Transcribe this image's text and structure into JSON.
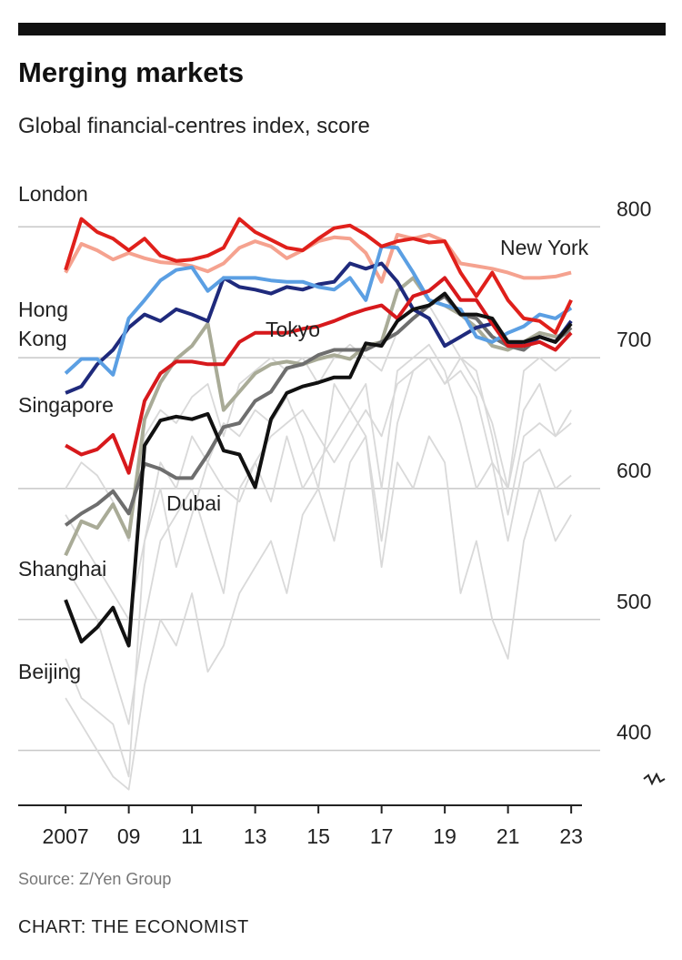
{
  "chart_data": {
    "type": "line",
    "title": "Merging markets",
    "subtitle": "Global financial-centres index, score",
    "source": "Source: Z/Yen Group",
    "credit": "CHART: THE ECONOMIST",
    "x": [
      2007,
      2007.5,
      2008,
      2008.5,
      2009,
      2009.5,
      2010,
      2010.5,
      2011,
      2011.5,
      2012,
      2012.5,
      2013,
      2013.5,
      2014,
      2014.5,
      2015,
      2015.5,
      2016,
      2016.5,
      2017,
      2017.5,
      2018,
      2018.5,
      2019,
      2019.5,
      2020,
      2020.5,
      2021,
      2021.5,
      2022,
      2022.5,
      2023
    ],
    "xlim": [
      2005.5,
      2023.6
    ],
    "xticks": [
      2007,
      {
        "value": 2009,
        "label": "09"
      },
      {
        "value": 2011,
        "label": "11"
      },
      {
        "value": 2013,
        "label": "13"
      },
      {
        "value": 2015,
        "label": "15"
      },
      {
        "value": 2017,
        "label": "17"
      },
      {
        "value": 2019,
        "label": "19"
      },
      {
        "value": 2021,
        "label": "21"
      },
      {
        "value": 2023,
        "label": "23"
      }
    ],
    "ylim": [
      358,
      812
    ],
    "yticks": [
      400,
      500,
      600,
      700,
      800
    ],
    "grid": true,
    "series": [
      {
        "color": "#d9d9d9",
        "values": [
          470,
          440,
          430,
          420,
          380,
          560,
          620,
          600,
          640,
          620,
          650,
          640,
          660,
          650,
          670,
          640,
          600,
          680,
          660,
          640,
          560,
          650,
          690,
          700,
          680,
          700,
          690,
          640,
          580,
          640,
          650,
          640,
          650
        ]
      },
      {
        "color": "#d9d9d9",
        "values": [
          540,
          520,
          500,
          460,
          420,
          500,
          560,
          580,
          600,
          560,
          520,
          600,
          620,
          590,
          640,
          600,
          620,
          640,
          660,
          680,
          600,
          690,
          700,
          710,
          690,
          650,
          600,
          620,
          560,
          620,
          630,
          600,
          610
        ]
      },
      {
        "color": "#d9d9d9",
        "values": [
          600,
          620,
          610,
          590,
          560,
          640,
          660,
          650,
          670,
          680,
          640,
          680,
          690,
          700,
          690,
          700,
          680,
          700,
          710,
          700,
          690,
          720,
          730,
          740,
          720,
          700,
          680,
          650,
          600,
          690,
          700,
          690,
          700
        ]
      },
      {
        "color": "#d9d9d9",
        "values": [
          440,
          420,
          400,
          380,
          370,
          450,
          500,
          480,
          520,
          460,
          480,
          520,
          540,
          560,
          520,
          580,
          600,
          560,
          620,
          640,
          540,
          620,
          600,
          640,
          620,
          520,
          560,
          500,
          470,
          560,
          600,
          560,
          580
        ]
      },
      {
        "color": "#d9d9d9",
        "values": [
          580,
          560,
          540,
          520,
          500,
          560,
          600,
          540,
          580,
          620,
          600,
          590,
          620,
          640,
          650,
          660,
          640,
          620,
          640,
          660,
          640,
          680,
          690,
          700,
          680,
          690,
          670,
          620,
          600,
          660,
          680,
          640,
          660
        ]
      },
      {
        "name": "Shanghai",
        "color": "#a9ab97",
        "values": [
          549,
          575,
          570,
          588,
          563,
          653,
          681,
          699,
          709,
          726,
          660,
          674,
          688,
          695,
          697,
          695,
          699,
          702,
          699,
          709,
          712,
          751,
          761,
          744,
          740,
          733,
          723,
          709,
          706,
          712,
          719,
          716,
          719
        ]
      },
      {
        "name": "Dubai",
        "color": "#6e6e6e",
        "values": [
          572,
          581,
          588,
          598,
          581,
          619,
          615,
          608,
          608,
          626,
          647,
          650,
          667,
          674,
          692,
          695,
          702,
          706,
          706,
          706,
          712,
          719,
          730,
          740,
          747,
          733,
          730,
          716,
          709,
          706,
          716,
          712,
          723
        ]
      },
      {
        "name": "New York",
        "color": "#f5a28f",
        "values": [
          765,
          787,
          782,
          775,
          780,
          776,
          773,
          772,
          770,
          766,
          772,
          784,
          789,
          785,
          776,
          782,
          789,
          792,
          791,
          780,
          758,
          794,
          791,
          794,
          789,
          772,
          770,
          768,
          765,
          761,
          761,
          762,
          765
        ]
      },
      {
        "name": "Singapore",
        "color": "#1f2a7c",
        "values": [
          673,
          678,
          695,
          706,
          723,
          733,
          728,
          737,
          733,
          728,
          761,
          754,
          752,
          749,
          754,
          752,
          756,
          758,
          772,
          768,
          772,
          758,
          737,
          730,
          709,
          716,
          723,
          726,
          712,
          709,
          716,
          712,
          728
        ]
      },
      {
        "name": "Hong Kong",
        "color": "#5b9fe3",
        "values": [
          688,
          699,
          699,
          687,
          730,
          744,
          759,
          767,
          769,
          751,
          761,
          761,
          761,
          759,
          758,
          758,
          754,
          752,
          761,
          744,
          785,
          784,
          765,
          744,
          740,
          737,
          716,
          712,
          719,
          724,
          733,
          730,
          738
        ]
      },
      {
        "name": "Tokyo",
        "color": "#d7191c",
        "values": [
          633,
          626,
          630,
          641,
          612,
          667,
          688,
          697,
          697,
          695,
          695,
          712,
          719,
          719,
          719,
          722,
          724,
          728,
          733,
          737,
          740,
          730,
          747,
          751,
          761,
          744,
          744,
          726,
          709,
          709,
          712,
          706,
          719
        ]
      },
      {
        "name": "London",
        "color": "#e0201b",
        "values": [
          767,
          806,
          796,
          791,
          782,
          791,
          778,
          774,
          775,
          778,
          784,
          806,
          796,
          790,
          784,
          782,
          791,
          799,
          801,
          794,
          785,
          789,
          791,
          788,
          789,
          765,
          747,
          765,
          744,
          730,
          728,
          719,
          744
        ]
      },
      {
        "name": "Beijing",
        "color": "#111111",
        "values": [
          515,
          483,
          494,
          509,
          480,
          633,
          652,
          655,
          653,
          657,
          629,
          626,
          601,
          653,
          673,
          678,
          681,
          685,
          685,
          711,
          709,
          728,
          737,
          740,
          749,
          733,
          733,
          730,
          712,
          712,
          716,
          712,
          726
        ]
      }
    ]
  }
}
